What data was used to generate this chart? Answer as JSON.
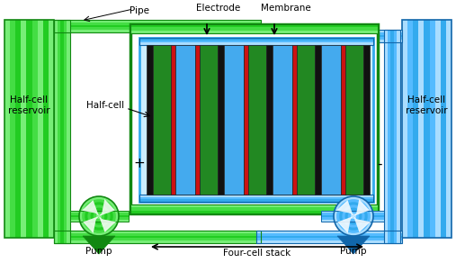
{
  "fig_width": 5.07,
  "fig_height": 2.92,
  "dpi": 100,
  "bg_color": "#ffffff",
  "green_main": "#22cc22",
  "green_light": "#77ee77",
  "green_dark": "#118811",
  "green_mid": "#44dd44",
  "blue_main": "#33aaee",
  "blue_light": "#aaddff",
  "blue_dark": "#1166aa",
  "blue_mid": "#55bbff",
  "cell_green": "#228822",
  "cell_blue": "#44aaee",
  "cell_black": "#111111",
  "cell_red": "#dd1111",
  "label_pipe": "Pipe",
  "label_electrode": "Electrode",
  "label_membrane": "Membrane",
  "label_half_cell": "Half-cell",
  "label_res_left": "Half-cell\nreservoir",
  "label_res_right": "Half-cell\nreservoir",
  "label_pump": "Pump",
  "label_four_cell": "Four-cell stack",
  "label_plus": "+",
  "label_minus": "-"
}
